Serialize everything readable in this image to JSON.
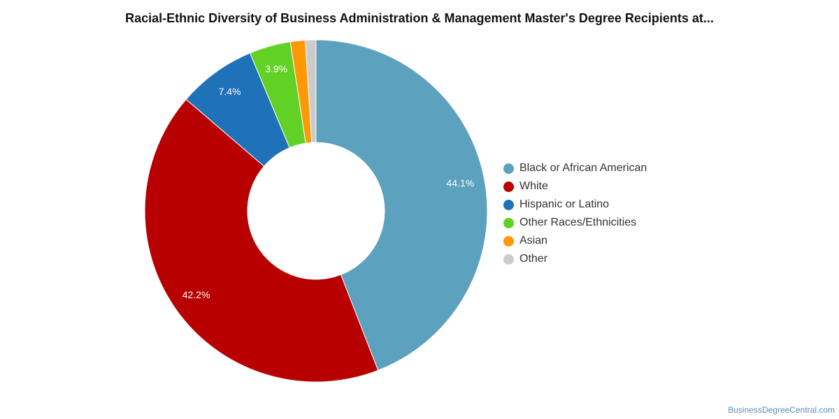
{
  "chart_data": {
    "type": "pie",
    "title": "Racial-Ethnic Diversity of Business Administration & Management Master's Degree Recipients at...",
    "series": [
      {
        "name": "Black or African American",
        "value": 44.1,
        "label": "44.1%",
        "color": "#5ca1be"
      },
      {
        "name": "White",
        "value": 42.2,
        "label": "42.2%",
        "color": "#b90000"
      },
      {
        "name": "Hispanic or Latino",
        "value": 7.4,
        "label": "7.4%",
        "color": "#1f72b8"
      },
      {
        "name": "Other Races/Ethnicities",
        "value": 3.9,
        "label": "3.9%",
        "color": "#61d126"
      },
      {
        "name": "Asian",
        "value": 1.4,
        "label": "",
        "color": "#ff9805"
      },
      {
        "name": "Other",
        "value": 1.0,
        "label": "",
        "color": "#cccccc"
      }
    ],
    "legend_position": "right"
  },
  "footer": {
    "credit": "BusinessDegreeCentral.com"
  }
}
